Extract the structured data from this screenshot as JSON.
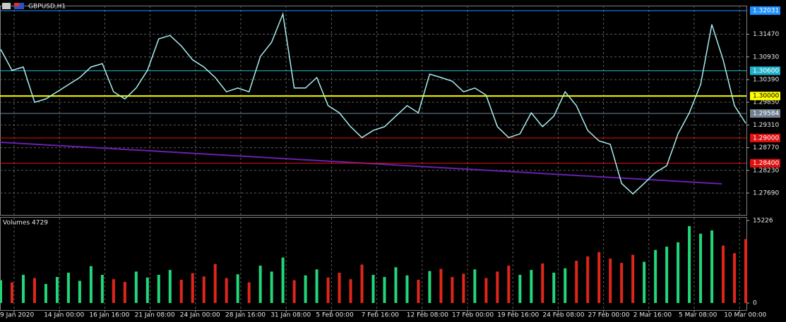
{
  "chart_data": [
    {
      "type": "line",
      "title": "GBPUSD,H1",
      "color": "#a8eef0",
      "values": [
        1.3111,
        1.3061,
        1.3069,
        1.2985,
        1.2993,
        1.301,
        1.3027,
        1.3044,
        1.3069,
        1.3077,
        1.301,
        1.2993,
        1.3019,
        1.3061,
        1.3136,
        1.3144,
        1.3119,
        1.3086,
        1.3069,
        1.3044,
        1.301,
        1.3019,
        1.301,
        1.3094,
        1.3128,
        1.3195,
        1.3019,
        1.3019,
        1.3044,
        1.2977,
        1.296,
        1.2927,
        1.2901,
        1.2918,
        1.2927,
        1.2952,
        1.2977,
        1.296,
        1.3052,
        1.3044,
        1.3035,
        1.301,
        1.3019,
        1.3002,
        1.2927,
        1.2901,
        1.291,
        1.296,
        1.2927,
        1.2952,
        1.301,
        1.2977,
        1.2918,
        1.2893,
        1.2885,
        1.2792,
        1.2767,
        1.2792,
        1.2818,
        1.2834,
        1.291,
        1.296,
        1.3027,
        1.317,
        1.3086,
        1.2977,
        1.2935
      ],
      "ylim": [
        1.2717,
        1.3215
      ],
      "yticks": [
        {
          "value": 1.3147,
          "label": "1.31470"
        },
        {
          "value": 1.3093,
          "label": "1.30930"
        },
        {
          "value": 1.3039,
          "label": "1.30390"
        },
        {
          "value": 1.2985,
          "label": "1.29850"
        },
        {
          "value": 1.2931,
          "label": "1.29310"
        },
        {
          "value": 1.2877,
          "label": "1.28770"
        },
        {
          "value": 1.2823,
          "label": "1.28230"
        },
        {
          "value": 1.2769,
          "label": "1.27690"
        }
      ],
      "levels": [
        {
          "value": 1.32031,
          "label": "1.32031",
          "color": "#1e90ff"
        },
        {
          "value": 1.306,
          "label": "1.30600",
          "color": "#20b2c8"
        },
        {
          "value": 1.3,
          "label": "1.30000",
          "color": "#ffff00"
        },
        {
          "value": 1.29584,
          "label": "1.29584",
          "color": "#708090"
        },
        {
          "value": 1.29,
          "label": "1.29000",
          "color": "#e01010"
        },
        {
          "value": 1.284,
          "label": "1.28400",
          "color": "#e01010"
        }
      ],
      "trendline": {
        "values": [
          1.289,
          1.2791
        ],
        "color": "#6a1fb0"
      },
      "x_labels": [
        "9 Jan 2020",
        "14 Jan 00:00",
        "16 Jan 16:00",
        "21 Jan 08:00",
        "24 Jan 00:00",
        "28 Jan 16:00",
        "31 Jan 08:00",
        "5 Feb 00:00",
        "7 Feb 16:00",
        "12 Feb 08:00",
        "17 Feb 00:00",
        "19 Feb 16:00",
        "24 Feb 08:00",
        "27 Feb 00:00",
        "2 Mar 16:00",
        "5 Mar 08:00",
        "10 Mar 00:00"
      ],
      "grid": true
    },
    {
      "type": "bar",
      "title": "Volumes 4729",
      "up_color": "#22d67a",
      "down_color": "#e0261a",
      "values": [
        4200,
        3800,
        5200,
        4600,
        3500,
        4800,
        5600,
        4100,
        6800,
        5200,
        4400,
        3900,
        5800,
        4700,
        5200,
        6100,
        4300,
        5500,
        4900,
        7200,
        4600,
        5300,
        3800,
        6900,
        5800,
        8400,
        4200,
        5100,
        6200,
        4700,
        5600,
        4400,
        7100,
        5200,
        4800,
        6600,
        5100,
        4300,
        5900,
        6300,
        4800,
        5400,
        6200,
        4600,
        5800,
        6900,
        5200,
        6100,
        7300,
        5600,
        6400,
        7800,
        8600,
        9400,
        8200,
        7400,
        8900,
        7600,
        9800,
        10400,
        11200,
        14200,
        12800,
        13400,
        10600,
        9200,
        11800
      ],
      "ylim": [
        0,
        15226
      ],
      "yticks": [
        0,
        15226
      ]
    }
  ]
}
